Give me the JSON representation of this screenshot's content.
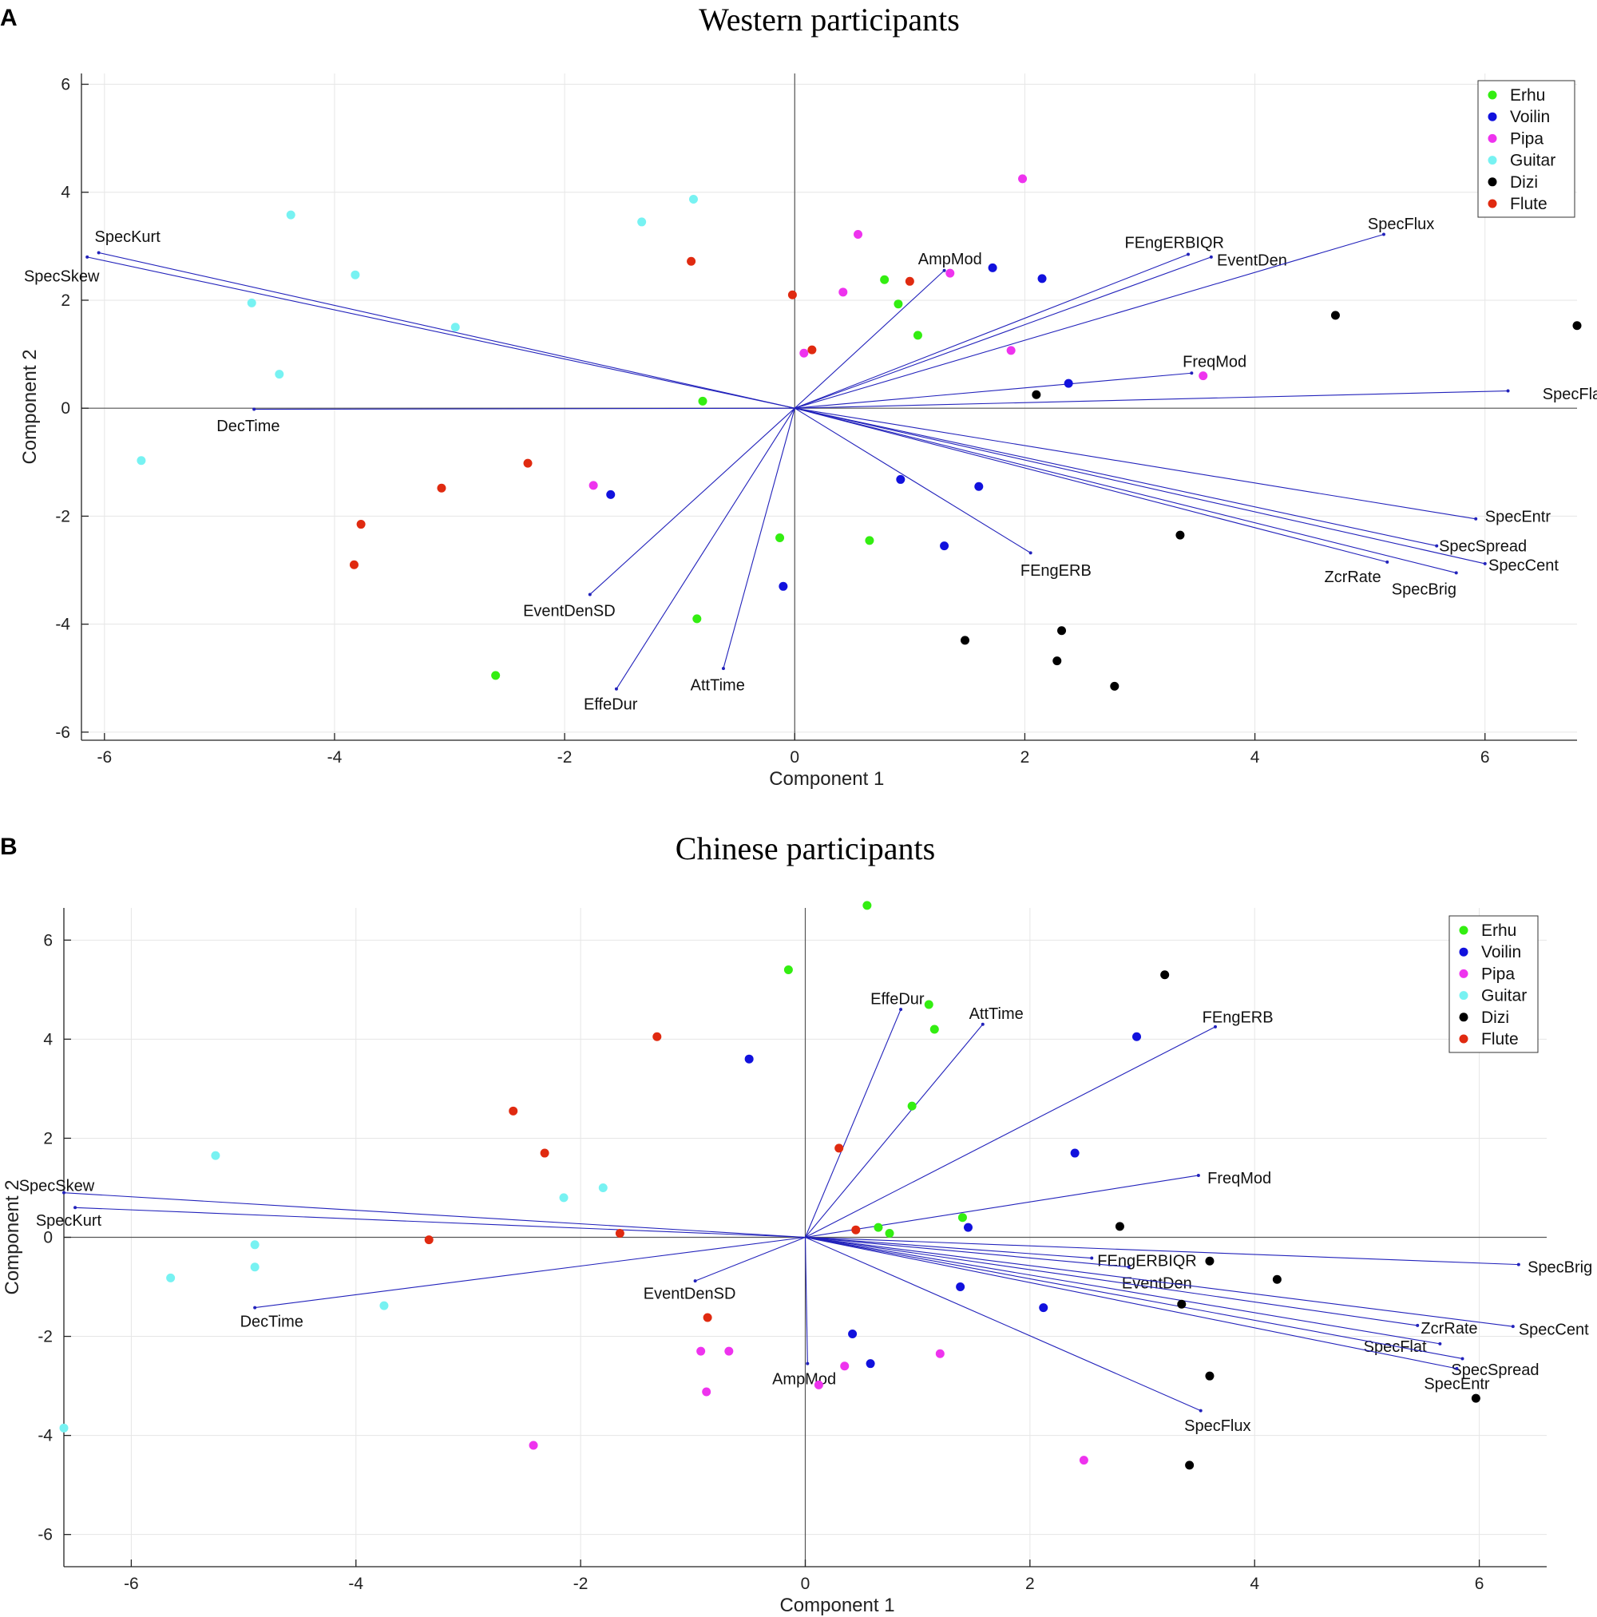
{
  "legend_colors": {
    "Erhu": "#33ee11",
    "Voilin": "#1111dd",
    "Pipa": "#ee33ee",
    "Guitar": "#77f2f2",
    "Dizi": "#000000",
    "Flute": "#e02a10"
  },
  "vector_color": "#2222bb",
  "chart_data": [
    {
      "type": "scatter",
      "panel": "A",
      "title": "Western participants",
      "xlabel": "Component 1",
      "ylabel": "Component 2",
      "xlim": [
        -6.2,
        6.8
      ],
      "ylim": [
        -6.15,
        6.2
      ],
      "xticks": [
        -6,
        -4,
        -2,
        0,
        2,
        4,
        6
      ],
      "yticks": [
        -6,
        -4,
        -2,
        0,
        2,
        4,
        6
      ],
      "grid": true,
      "legend_position": "top-right",
      "legend": [
        "Erhu",
        "Voilin",
        "Pipa",
        "Guitar",
        "Dizi",
        "Flute"
      ],
      "series": [
        {
          "name": "Erhu",
          "points": [
            [
              -0.8,
              0.13
            ],
            [
              0.78,
              2.38
            ],
            [
              0.9,
              1.93
            ],
            [
              1.07,
              1.35
            ],
            [
              -0.13,
              -2.4
            ],
            [
              0.65,
              -2.45
            ],
            [
              -0.85,
              -3.9
            ],
            [
              -2.6,
              -4.95
            ]
          ]
        },
        {
          "name": "Voilin",
          "points": [
            [
              1.72,
              2.6
            ],
            [
              2.15,
              2.4
            ],
            [
              2.38,
              0.46
            ],
            [
              -1.6,
              -1.6
            ],
            [
              0.92,
              -1.32
            ],
            [
              1.6,
              -1.45
            ],
            [
              1.3,
              -2.55
            ],
            [
              -0.1,
              -3.3
            ]
          ]
        },
        {
          "name": "Pipa",
          "points": [
            [
              1.98,
              4.25
            ],
            [
              0.55,
              3.22
            ],
            [
              1.35,
              2.5
            ],
            [
              0.42,
              2.15
            ],
            [
              1.88,
              1.07
            ],
            [
              3.55,
              0.6
            ],
            [
              0.08,
              1.02
            ],
            [
              -1.75,
              -1.43
            ]
          ]
        },
        {
          "name": "Guitar",
          "points": [
            [
              -0.88,
              3.87
            ],
            [
              -1.33,
              3.45
            ],
            [
              -4.38,
              3.58
            ],
            [
              -3.82,
              2.47
            ],
            [
              -4.72,
              1.95
            ],
            [
              -2.95,
              1.5
            ],
            [
              -4.48,
              0.63
            ],
            [
              -5.68,
              -0.97
            ]
          ]
        },
        {
          "name": "Dizi",
          "points": [
            [
              4.7,
              1.72
            ],
            [
              6.8,
              1.53
            ],
            [
              2.1,
              0.25
            ],
            [
              3.35,
              -2.35
            ],
            [
              2.32,
              -4.12
            ],
            [
              1.48,
              -4.3
            ],
            [
              2.28,
              -4.68
            ],
            [
              2.78,
              -5.15
            ]
          ]
        },
        {
          "name": "Flute",
          "points": [
            [
              -0.9,
              2.72
            ],
            [
              -0.02,
              2.1
            ],
            [
              1.0,
              2.35
            ],
            [
              0.15,
              1.08
            ],
            [
              -2.32,
              -1.02
            ],
            [
              -3.07,
              -1.48
            ],
            [
              -3.77,
              -2.15
            ],
            [
              -3.83,
              -2.9
            ]
          ]
        }
      ],
      "vectors": [
        {
          "label": "SpecKurt",
          "x": -6.05,
          "y": 2.88,
          "label_anchor": "middle",
          "label_dx": 0.25,
          "label_dy": 0.3
        },
        {
          "label": "SpecSkew",
          "x": -6.15,
          "y": 2.8,
          "label_anchor": "start",
          "label_dx": -0.55,
          "label_dy": -0.35
        },
        {
          "label": "DecTime",
          "x": -4.7,
          "y": -0.02,
          "label_anchor": "middle",
          "label_dx": -0.05,
          "label_dy": -0.3
        },
        {
          "label": "AmpMod",
          "x": 1.3,
          "y": 2.55,
          "label_anchor": "middle",
          "label_dx": 0.05,
          "label_dy": 0.22
        },
        {
          "label": "FEngERBIQR",
          "x": 3.42,
          "y": 2.85,
          "label_anchor": "middle",
          "label_dx": -0.12,
          "label_dy": 0.22
        },
        {
          "label": "EventDen",
          "x": 3.62,
          "y": 2.8,
          "label_anchor": "start",
          "label_dx": 0.05,
          "label_dy": -0.05
        },
        {
          "label": "SpecFlux",
          "x": 5.12,
          "y": 3.22,
          "label_anchor": "middle",
          "label_dx": 0.15,
          "label_dy": 0.2
        },
        {
          "label": "FreqMod",
          "x": 3.45,
          "y": 0.65,
          "label_anchor": "middle",
          "label_dx": 0.2,
          "label_dy": 0.22
        },
        {
          "label": "SpecFlat",
          "x": 6.2,
          "y": 0.32,
          "label_anchor": "start",
          "label_dx": 0.3,
          "label_dy": -0.05
        },
        {
          "label": "SpecEntr",
          "x": 5.92,
          "y": -2.05,
          "label_anchor": "start",
          "label_dx": 0.08,
          "label_dy": 0.05
        },
        {
          "label": "SpecSpread",
          "x": 5.58,
          "y": -2.55,
          "label_anchor": "start",
          "label_dx": 0.02,
          "label_dy": 0.0
        },
        {
          "label": "SpecCent",
          "x": 6.0,
          "y": -2.88,
          "label_anchor": "start",
          "label_dx": 0.03,
          "label_dy": -0.02
        },
        {
          "label": "ZcrRate",
          "x": 5.15,
          "y": -2.85,
          "label_anchor": "middle",
          "label_dx": -0.3,
          "label_dy": -0.27
        },
        {
          "label": "SpecBrig",
          "x": 5.75,
          "y": -3.05,
          "label_anchor": "middle",
          "label_dx": -0.28,
          "label_dy": -0.3
        },
        {
          "label": "FEngERB",
          "x": 2.05,
          "y": -2.68,
          "label_anchor": "middle",
          "label_dx": 0.22,
          "label_dy": -0.32
        },
        {
          "label": "EventDenSD",
          "x": -1.78,
          "y": -3.45,
          "label_anchor": "middle",
          "label_dx": -0.18,
          "label_dy": -0.3
        },
        {
          "label": "EffeDur",
          "x": -1.55,
          "y": -5.2,
          "label_anchor": "middle",
          "label_dx": -0.05,
          "label_dy": -0.28
        },
        {
          "label": "AttTime",
          "x": -0.62,
          "y": -4.82,
          "label_anchor": "middle",
          "label_dx": -0.05,
          "label_dy": -0.3
        }
      ]
    },
    {
      "type": "scatter",
      "panel": "B",
      "title": "Chinese participants",
      "xlabel": "Component 1",
      "ylabel": "Component 2",
      "xlim": [
        -6.6,
        6.6
      ],
      "ylim": [
        -6.65,
        6.65
      ],
      "xticks": [
        -6,
        -4,
        -2,
        0,
        2,
        4,
        6
      ],
      "yticks": [
        -6,
        -4,
        -2,
        0,
        2,
        4,
        6
      ],
      "grid": true,
      "legend_position": "top-right",
      "legend": [
        "Erhu",
        "Voilin",
        "Pipa",
        "Guitar",
        "Dizi",
        "Flute"
      ],
      "series": [
        {
          "name": "Erhu",
          "points": [
            [
              0.55,
              6.7
            ],
            [
              -0.15,
              5.4
            ],
            [
              1.1,
              4.7
            ],
            [
              1.15,
              4.2
            ],
            [
              0.95,
              2.65
            ],
            [
              1.4,
              0.4
            ],
            [
              0.65,
              0.2
            ],
            [
              0.75,
              0.08
            ]
          ]
        },
        {
          "name": "Voilin",
          "points": [
            [
              -0.5,
              3.6
            ],
            [
              2.95,
              4.05
            ],
            [
              2.4,
              1.7
            ],
            [
              1.45,
              0.2
            ],
            [
              1.38,
              -1.0
            ],
            [
              2.12,
              -1.42
            ],
            [
              0.42,
              -1.95
            ],
            [
              0.58,
              -2.55
            ]
          ]
        },
        {
          "name": "Pipa",
          "points": [
            [
              -0.93,
              -2.3
            ],
            [
              -0.68,
              -2.3
            ],
            [
              1.2,
              -2.35
            ],
            [
              0.35,
              -2.6
            ],
            [
              0.12,
              -2.98
            ],
            [
              -0.88,
              -3.12
            ],
            [
              -2.42,
              -4.2
            ],
            [
              2.48,
              -4.5
            ]
          ]
        },
        {
          "name": "Guitar",
          "points": [
            [
              -5.25,
              1.65
            ],
            [
              -2.15,
              0.8
            ],
            [
              -1.8,
              1.0
            ],
            [
              -4.9,
              -0.15
            ],
            [
              -4.9,
              -0.6
            ],
            [
              -5.65,
              -0.82
            ],
            [
              -3.75,
              -1.38
            ],
            [
              -6.6,
              -3.85
            ]
          ]
        },
        {
          "name": "Dizi",
          "points": [
            [
              3.2,
              5.3
            ],
            [
              2.8,
              0.22
            ],
            [
              3.6,
              -0.48
            ],
            [
              4.2,
              -0.85
            ],
            [
              3.35,
              -1.35
            ],
            [
              3.6,
              -2.8
            ],
            [
              5.97,
              -3.25
            ],
            [
              3.42,
              -4.6
            ]
          ]
        },
        {
          "name": "Flute",
          "points": [
            [
              -1.32,
              4.05
            ],
            [
              -2.6,
              2.55
            ],
            [
              -2.32,
              1.7
            ],
            [
              0.3,
              1.8
            ],
            [
              0.45,
              0.15
            ],
            [
              -1.65,
              0.08
            ],
            [
              -3.35,
              -0.05
            ],
            [
              -0.87,
              -1.62
            ]
          ]
        }
      ],
      "vectors": [
        {
          "label": "SpecSkew",
          "x": -6.6,
          "y": 0.9,
          "label_anchor": "start",
          "label_dx": -0.4,
          "label_dy": 0.15
        },
        {
          "label": "SpecKurt",
          "x": -6.5,
          "y": 0.6,
          "label_anchor": "start",
          "label_dx": -0.35,
          "label_dy": -0.25
        },
        {
          "label": "DecTime",
          "x": -4.9,
          "y": -1.42,
          "label_anchor": "middle",
          "label_dx": 0.15,
          "label_dy": -0.27
        },
        {
          "label": "EventDenSD",
          "x": -0.98,
          "y": -0.88,
          "label_anchor": "middle",
          "label_dx": -0.05,
          "label_dy": -0.25
        },
        {
          "label": "AmpMod",
          "x": 0.02,
          "y": -2.55,
          "label_anchor": "middle",
          "label_dx": -0.03,
          "label_dy": -0.3
        },
        {
          "label": "EffeDur",
          "x": 0.85,
          "y": 4.6,
          "label_anchor": "middle",
          "label_dx": -0.03,
          "label_dy": 0.22
        },
        {
          "label": "AttTime",
          "x": 1.58,
          "y": 4.3,
          "label_anchor": "middle",
          "label_dx": 0.12,
          "label_dy": 0.22
        },
        {
          "label": "FEngERB",
          "x": 3.65,
          "y": 4.25,
          "label_anchor": "middle",
          "label_dx": 0.2,
          "label_dy": 0.2
        },
        {
          "label": "FreqMod",
          "x": 3.5,
          "y": 1.25,
          "label_anchor": "start",
          "label_dx": 0.08,
          "label_dy": -0.05
        },
        {
          "label": "FEngERBIQR",
          "x": 2.55,
          "y": -0.42,
          "label_anchor": "start",
          "label_dx": 0.05,
          "label_dy": -0.05
        },
        {
          "label": "EventDen",
          "x": 2.88,
          "y": -0.6,
          "label_anchor": "middle",
          "label_dx": 0.25,
          "label_dy": -0.32
        },
        {
          "label": "SpecBrig",
          "x": 6.35,
          "y": -0.55,
          "label_anchor": "start",
          "label_dx": 0.08,
          "label_dy": -0.05
        },
        {
          "label": "ZcrRate",
          "x": 5.45,
          "y": -1.78,
          "label_anchor": "start",
          "label_dx": 0.03,
          "label_dy": -0.05
        },
        {
          "label": "SpecCent",
          "x": 6.3,
          "y": -1.8,
          "label_anchor": "start",
          "label_dx": 0.05,
          "label_dy": -0.05
        },
        {
          "label": "SpecFlat",
          "x": 5.65,
          "y": -2.15,
          "label_anchor": "middle",
          "label_dx": -0.4,
          "label_dy": -0.05
        },
        {
          "label": "SpecSpread",
          "x": 5.85,
          "y": -2.45,
          "label_anchor": "start",
          "label_dx": -0.1,
          "label_dy": -0.22
        },
        {
          "label": "SpecEntr",
          "x": 5.8,
          "y": -2.65,
          "label_anchor": "middle",
          "label_dx": 0.0,
          "label_dy": -0.3
        },
        {
          "label": "SpecFlux",
          "x": 3.52,
          "y": -3.5,
          "label_anchor": "middle",
          "label_dx": 0.15,
          "label_dy": -0.3
        }
      ]
    }
  ]
}
